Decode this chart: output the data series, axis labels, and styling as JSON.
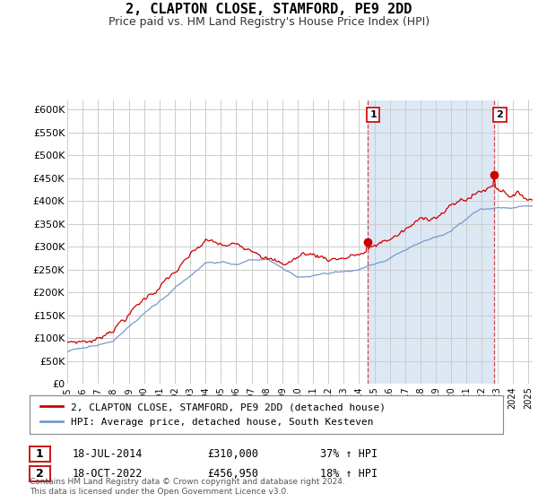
{
  "title": "2, CLAPTON CLOSE, STAMFORD, PE9 2DD",
  "subtitle": "Price paid vs. HM Land Registry's House Price Index (HPI)",
  "title_fontsize": 11,
  "subtitle_fontsize": 9,
  "line1_label": "2, CLAPTON CLOSE, STAMFORD, PE9 2DD (detached house)",
  "line2_label": "HPI: Average price, detached house, South Kesteven",
  "line1_color": "#cc0000",
  "line2_color": "#7799cc",
  "shade_color": "#dde8f5",
  "ylim": [
    0,
    620000
  ],
  "yticks": [
    0,
    50000,
    100000,
    150000,
    200000,
    250000,
    300000,
    350000,
    400000,
    450000,
    500000,
    550000,
    600000
  ],
  "ytick_labels": [
    "£0",
    "£50K",
    "£100K",
    "£150K",
    "£200K",
    "£250K",
    "£300K",
    "£350K",
    "£400K",
    "£450K",
    "£500K",
    "£550K",
    "£600K"
  ],
  "sale1_date_label": "18-JUL-2014",
  "sale1_price_label": "£310,000",
  "sale1_hpi_label": "37% ↑ HPI",
  "sale1_year": 2014.54,
  "sale1_price": 310000,
  "sale2_date_label": "18-OCT-2022",
  "sale2_price_label": "£456,950",
  "sale2_hpi_label": "18% ↑ HPI",
  "sale2_year": 2022.79,
  "sale2_price": 456950,
  "copyright_text": "Contains HM Land Registry data © Crown copyright and database right 2024.\nThis data is licensed under the Open Government Licence v3.0.",
  "background_color": "#ffffff",
  "grid_color": "#cccccc",
  "marker_box_color": "#cc0000",
  "xmin": 1995,
  "xmax": 2025.3
}
